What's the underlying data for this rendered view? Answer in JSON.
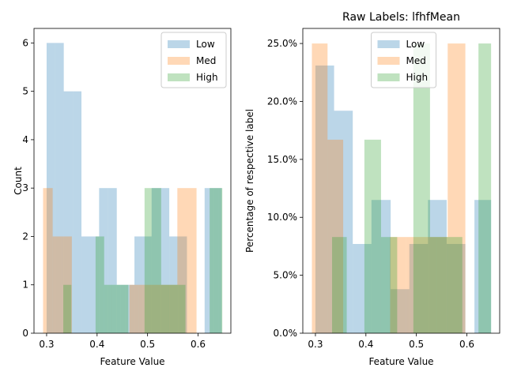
{
  "colors": {
    "low": "#1f77b4",
    "med": "#ff7f0e",
    "high": "#2ca02c",
    "bar_alpha": 0.3
  },
  "chart_data": [
    {
      "type": "bar",
      "title": "",
      "xlabel": "Feature Value",
      "ylabel": "Count",
      "xlim": [
        0.275,
        0.665
      ],
      "ylim": [
        0,
        6.3
      ],
      "x_ticks": [
        0.3,
        0.4,
        0.5,
        0.6
      ],
      "x_tick_labels": [
        "0.3",
        "0.4",
        "0.5",
        "0.6"
      ],
      "y_ticks": [
        0,
        1,
        2,
        3,
        4,
        5,
        6
      ],
      "y_tick_labels": [
        "0",
        "1",
        "2",
        "3",
        "4",
        "5",
        "6"
      ],
      "legend_position": "top-right",
      "series": [
        {
          "name": "Low",
          "color": "#1f77b4",
          "bins": [
            [
              0.3,
              0.317,
              6
            ],
            [
              0.317,
              0.334,
              6
            ],
            [
              0.334,
              0.352,
              5
            ],
            [
              0.352,
              0.369,
              5
            ],
            [
              0.369,
              0.387,
              2
            ],
            [
              0.387,
              0.404,
              2
            ],
            [
              0.404,
              0.421,
              3
            ],
            [
              0.421,
              0.439,
              3
            ],
            [
              0.439,
              0.456,
              1
            ],
            [
              0.456,
              0.474,
              1
            ],
            [
              0.474,
              0.491,
              2
            ],
            [
              0.491,
              0.508,
              2
            ],
            [
              0.508,
              0.526,
              3
            ],
            [
              0.526,
              0.543,
              3
            ],
            [
              0.543,
              0.561,
              2
            ],
            [
              0.561,
              0.578,
              2
            ],
            [
              0.578,
              0.595,
              0
            ],
            [
              0.595,
              0.613,
              0
            ],
            [
              0.613,
              0.63,
              3
            ],
            [
              0.63,
              0.647,
              3
            ]
          ]
        },
        {
          "name": "Med",
          "color": "#ff7f0e",
          "bins": [
            [
              0.293,
              0.312,
              3
            ],
            [
              0.312,
              0.331,
              2
            ],
            [
              0.331,
              0.35,
              2
            ],
            [
              0.35,
              0.369,
              0
            ],
            [
              0.369,
              0.388,
              0
            ],
            [
              0.388,
              0.407,
              0
            ],
            [
              0.407,
              0.426,
              0
            ],
            [
              0.426,
              0.445,
              0
            ],
            [
              0.445,
              0.464,
              0
            ],
            [
              0.464,
              0.483,
              1
            ],
            [
              0.483,
              0.502,
              1
            ],
            [
              0.502,
              0.521,
              1
            ],
            [
              0.521,
              0.54,
              1
            ],
            [
              0.54,
              0.559,
              1
            ],
            [
              0.559,
              0.578,
              3
            ],
            [
              0.578,
              0.597,
              3
            ]
          ]
        },
        {
          "name": "High",
          "color": "#2ca02c",
          "bins": [
            [
              0.333,
              0.349,
              1
            ],
            [
              0.349,
              0.365,
              0
            ],
            [
              0.365,
              0.381,
              0
            ],
            [
              0.381,
              0.397,
              0
            ],
            [
              0.397,
              0.414,
              2
            ],
            [
              0.414,
              0.43,
              1
            ],
            [
              0.43,
              0.446,
              1
            ],
            [
              0.446,
              0.462,
              1
            ],
            [
              0.462,
              0.478,
              0
            ],
            [
              0.478,
              0.494,
              0
            ],
            [
              0.494,
              0.51,
              3
            ],
            [
              0.51,
              0.527,
              3
            ],
            [
              0.527,
              0.543,
              1
            ],
            [
              0.543,
              0.559,
              1
            ],
            [
              0.559,
              0.575,
              1
            ],
            [
              0.575,
              0.591,
              0
            ],
            [
              0.591,
              0.607,
              0
            ],
            [
              0.607,
              0.623,
              0
            ],
            [
              0.623,
              0.64,
              3
            ],
            [
              0.64,
              0.648,
              3
            ]
          ]
        }
      ]
    },
    {
      "type": "bar",
      "title": "Raw Labels: lfhfMean",
      "xlabel": "Feature Value",
      "ylabel": "Percentage of respective label",
      "xlim": [
        0.275,
        0.665
      ],
      "ylim": [
        0,
        0.263
      ],
      "x_ticks": [
        0.3,
        0.4,
        0.5,
        0.6
      ],
      "x_tick_labels": [
        "0.3",
        "0.4",
        "0.5",
        "0.6"
      ],
      "y_ticks": [
        0,
        0.05,
        0.1,
        0.15,
        0.2,
        0.25
      ],
      "y_tick_labels": [
        "0.0%",
        "5.0%",
        "10.0%",
        "15.0%",
        "20.0%",
        "25.0%"
      ],
      "legend_position": "top-center",
      "series": [
        {
          "name": "Low",
          "color": "#1f77b4",
          "bins": [
            [
              0.3,
              0.337,
              0.231
            ],
            [
              0.337,
              0.374,
              0.192
            ],
            [
              0.374,
              0.411,
              0.077
            ],
            [
              0.411,
              0.449,
              0.115
            ],
            [
              0.449,
              0.486,
              0.038
            ],
            [
              0.486,
              0.523,
              0.077
            ],
            [
              0.523,
              0.56,
              0.115
            ],
            [
              0.56,
              0.597,
              0.077
            ],
            [
              0.597,
              0.615,
              0
            ],
            [
              0.615,
              0.648,
              0.115
            ]
          ]
        },
        {
          "name": "Med",
          "color": "#ff7f0e",
          "bins": [
            [
              0.293,
              0.324,
              0.25
            ],
            [
              0.324,
              0.355,
              0.167
            ],
            [
              0.355,
              0.386,
              0
            ],
            [
              0.386,
              0.417,
              0
            ],
            [
              0.417,
              0.448,
              0
            ],
            [
              0.448,
              0.479,
              0.083
            ],
            [
              0.479,
              0.51,
              0.083
            ],
            [
              0.51,
              0.541,
              0.083
            ],
            [
              0.541,
              0.562,
              0.083
            ],
            [
              0.562,
              0.597,
              0.25
            ]
          ]
        },
        {
          "name": "High",
          "color": "#2ca02c",
          "bins": [
            [
              0.333,
              0.362,
              0.083
            ],
            [
              0.362,
              0.397,
              0
            ],
            [
              0.397,
              0.43,
              0.167
            ],
            [
              0.43,
              0.462,
              0.083
            ],
            [
              0.462,
              0.494,
              0
            ],
            [
              0.494,
              0.527,
              0.25
            ],
            [
              0.527,
              0.559,
              0.083
            ],
            [
              0.559,
              0.591,
              0.083
            ],
            [
              0.591,
              0.623,
              0
            ],
            [
              0.623,
              0.648,
              0.25
            ]
          ]
        }
      ]
    }
  ]
}
